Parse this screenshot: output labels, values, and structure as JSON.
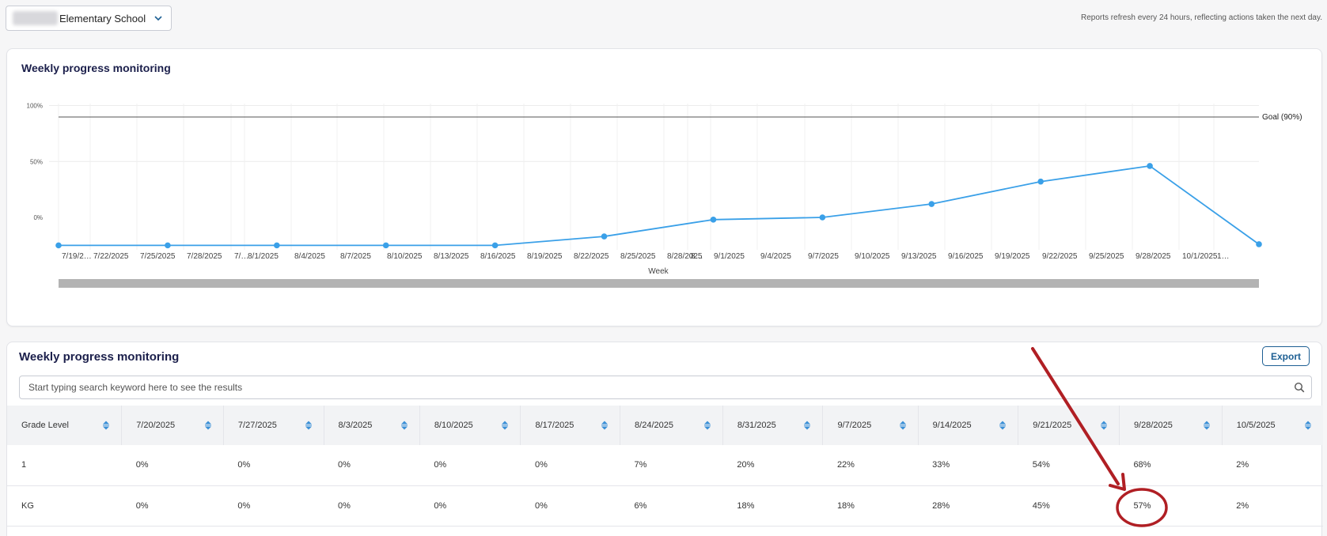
{
  "school_selector": {
    "name": "Elementary School"
  },
  "refresh_note": "Reports refresh every 24 hours, reflecting actions taken the next day.",
  "chart_card": {
    "title": "Weekly progress monitoring"
  },
  "table_card": {
    "title": "Weekly progress monitoring",
    "export_label": "Export",
    "search_placeholder": "Start typing search keyword here to see the results"
  },
  "colors": {
    "line": "#3aa0e8",
    "title": "#1b1f4b",
    "export": "#1d5f93",
    "annotation": "#b01f24"
  },
  "chart_data": {
    "type": "line",
    "xlabel": "Week",
    "tick_labels": [
      "7/19/2…",
      "7/22/2025",
      "7/25/2025",
      "7/28/2025",
      "7/…",
      "8/1/2025",
      "8/4/2025",
      "8/7/2025",
      "8/10/2025",
      "8/13/2025",
      "8/16/2025",
      "8/19/2025",
      "8/22/2025",
      "8/25/2025",
      "8/28/2025",
      "8…",
      "9/1/2025",
      "9/4/2025",
      "9/7/2025",
      "9/10/2025",
      "9/13/2025",
      "9/16/2025",
      "9/19/2025",
      "9/22/2025",
      "9/25/2025",
      "9/28/2025",
      "10/1/2025",
      "1…"
    ],
    "y_ticks": [
      "100%",
      "50%",
      "0%"
    ],
    "goal": {
      "label": "Goal (90%)",
      "value": 90
    },
    "points": [
      {
        "x": "7/19/2025",
        "y": -25
      },
      {
        "x": "7/26/2025",
        "y": -25
      },
      {
        "x": "8/2/2025",
        "y": -25
      },
      {
        "x": "8/9/2025",
        "y": -25
      },
      {
        "x": "8/16/2025",
        "y": -25
      },
      {
        "x": "8/23/2025",
        "y": -17
      },
      {
        "x": "8/30/2025",
        "y": -2
      },
      {
        "x": "9/6/2025",
        "y": 0
      },
      {
        "x": "9/13/2025",
        "y": 12
      },
      {
        "x": "9/20/2025",
        "y": 32
      },
      {
        "x": "9/27/2025",
        "y": 46
      },
      {
        "x": "10/4/2025",
        "y": -24
      }
    ]
  },
  "table": {
    "columns": [
      "Grade Level",
      "7/20/2025",
      "7/27/2025",
      "8/3/2025",
      "8/10/2025",
      "8/17/2025",
      "8/24/2025",
      "8/31/2025",
      "9/7/2025",
      "9/14/2025",
      "9/21/2025",
      "9/28/2025",
      "10/5/2025"
    ],
    "rows": [
      [
        "1",
        "0%",
        "0%",
        "0%",
        "0%",
        "0%",
        "7%",
        "20%",
        "22%",
        "33%",
        "54%",
        "68%",
        "2%"
      ],
      [
        "KG",
        "0%",
        "0%",
        "0%",
        "0%",
        "0%",
        "6%",
        "18%",
        "18%",
        "28%",
        "45%",
        "57%",
        "2%"
      ]
    ]
  }
}
